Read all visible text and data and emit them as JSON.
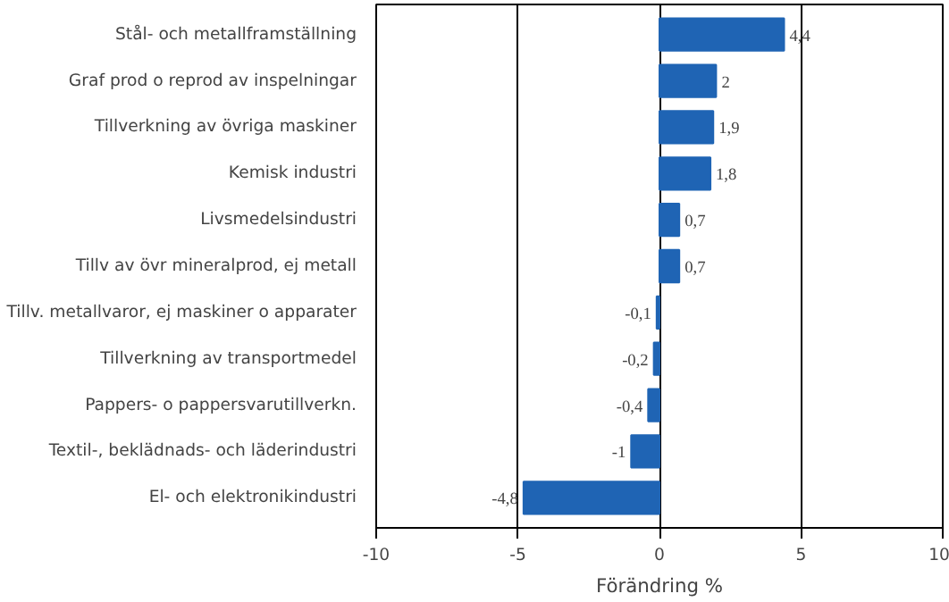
{
  "chart_data": {
    "type": "bar",
    "orientation": "horizontal",
    "xlabel": "Förändring %",
    "categories": [
      "Stål- och metallframställning",
      "Graf prod o reprod av inspelningar",
      "Tillverkning av övriga maskiner",
      "Kemisk industri",
      "Livsmedelsindustri",
      "Tillv av övr mineralprod, ej metall",
      "Tillv. metallvaror, ej maskiner o apparater",
      "Tillverkning av transportmedel",
      "Pappers- o pappersvarutillverkn.",
      "Textil-, beklädnads- och läderindustri",
      "El- och elektronikindustri"
    ],
    "values": [
      4.4,
      2,
      1.9,
      1.8,
      0.7,
      0.7,
      -0.1,
      -0.2,
      -0.4,
      -1,
      -4.8
    ],
    "value_labels": [
      "4,4",
      "2",
      "1,9",
      "1,8",
      "0,7",
      "0,7",
      "-0,1",
      "-0,2",
      "-0,4",
      "-1",
      "-4,8"
    ],
    "color": "#1f64b4",
    "xlim": [
      -10,
      10
    ],
    "xticks": [
      -10,
      -5,
      0,
      5,
      10
    ],
    "grid": "x"
  }
}
